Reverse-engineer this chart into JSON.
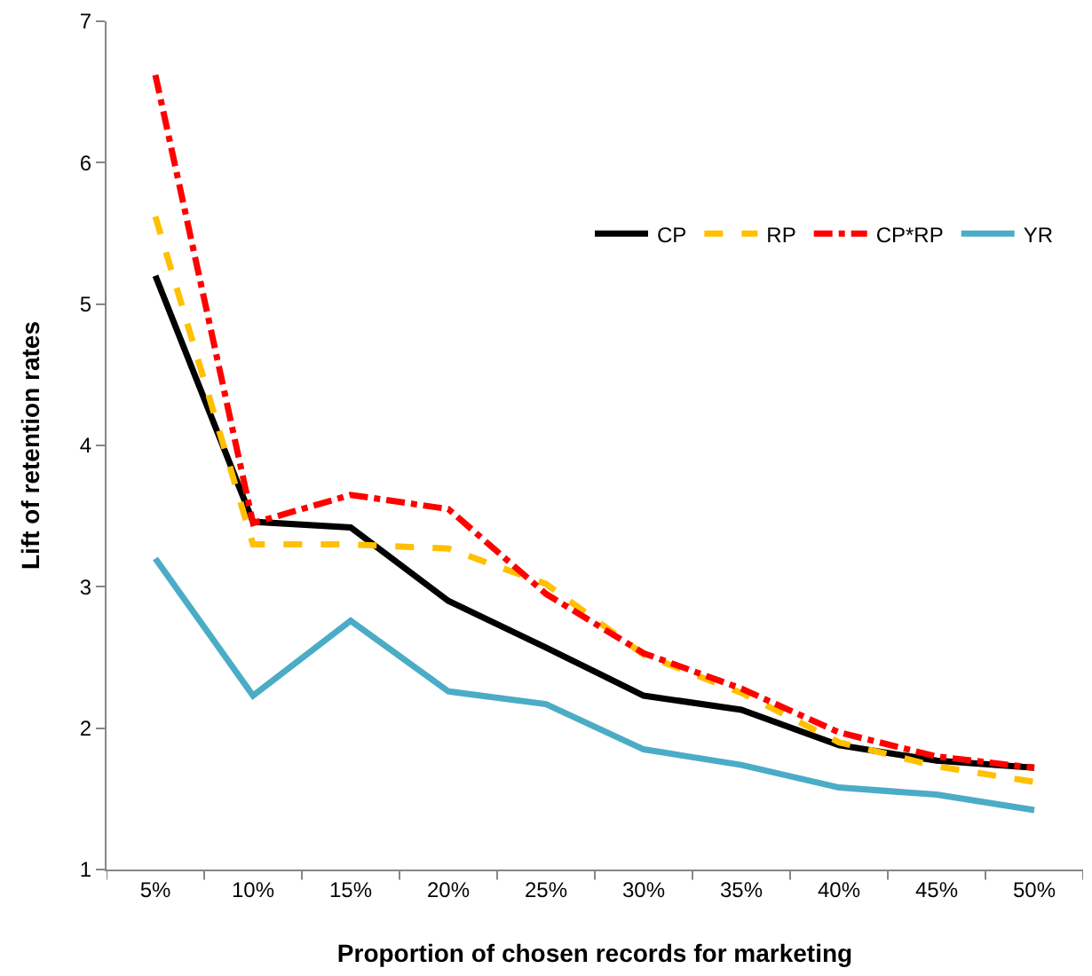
{
  "chart_data": {
    "type": "line",
    "xlabel": "Proportion of chosen records for marketing",
    "ylabel": "Lift of retention rates",
    "categories": [
      "5%",
      "10%",
      "15%",
      "20%",
      "25%",
      "30%",
      "35%",
      "40%",
      "45%",
      "50%"
    ],
    "series": [
      {
        "name": "CP",
        "color": "#000000",
        "line_style": "solid",
        "values": [
          5.2,
          3.46,
          3.42,
          2.9,
          2.57,
          2.23,
          2.13,
          1.88,
          1.77,
          1.72
        ]
      },
      {
        "name": "RP",
        "color": "#ffc000",
        "line_style": "dashed",
        "values": [
          5.62,
          3.3,
          3.3,
          3.27,
          3.02,
          2.52,
          2.25,
          1.9,
          1.73,
          1.62
        ]
      },
      {
        "name": "CP*RP",
        "color": "#ff0000",
        "line_style": "dashdot",
        "values": [
          6.62,
          3.45,
          3.65,
          3.55,
          2.95,
          2.53,
          2.28,
          1.97,
          1.8,
          1.72
        ]
      },
      {
        "name": "YR",
        "color": "#4bacc6",
        "line_style": "solid",
        "values": [
          3.2,
          2.23,
          2.76,
          2.26,
          2.17,
          1.85,
          1.74,
          1.58,
          1.53,
          1.42
        ]
      }
    ],
    "ylim": [
      1,
      7
    ],
    "yticks": [
      1,
      2,
      3,
      4,
      5,
      6,
      7
    ],
    "grid": false,
    "legend": "top right",
    "marker": "none"
  }
}
